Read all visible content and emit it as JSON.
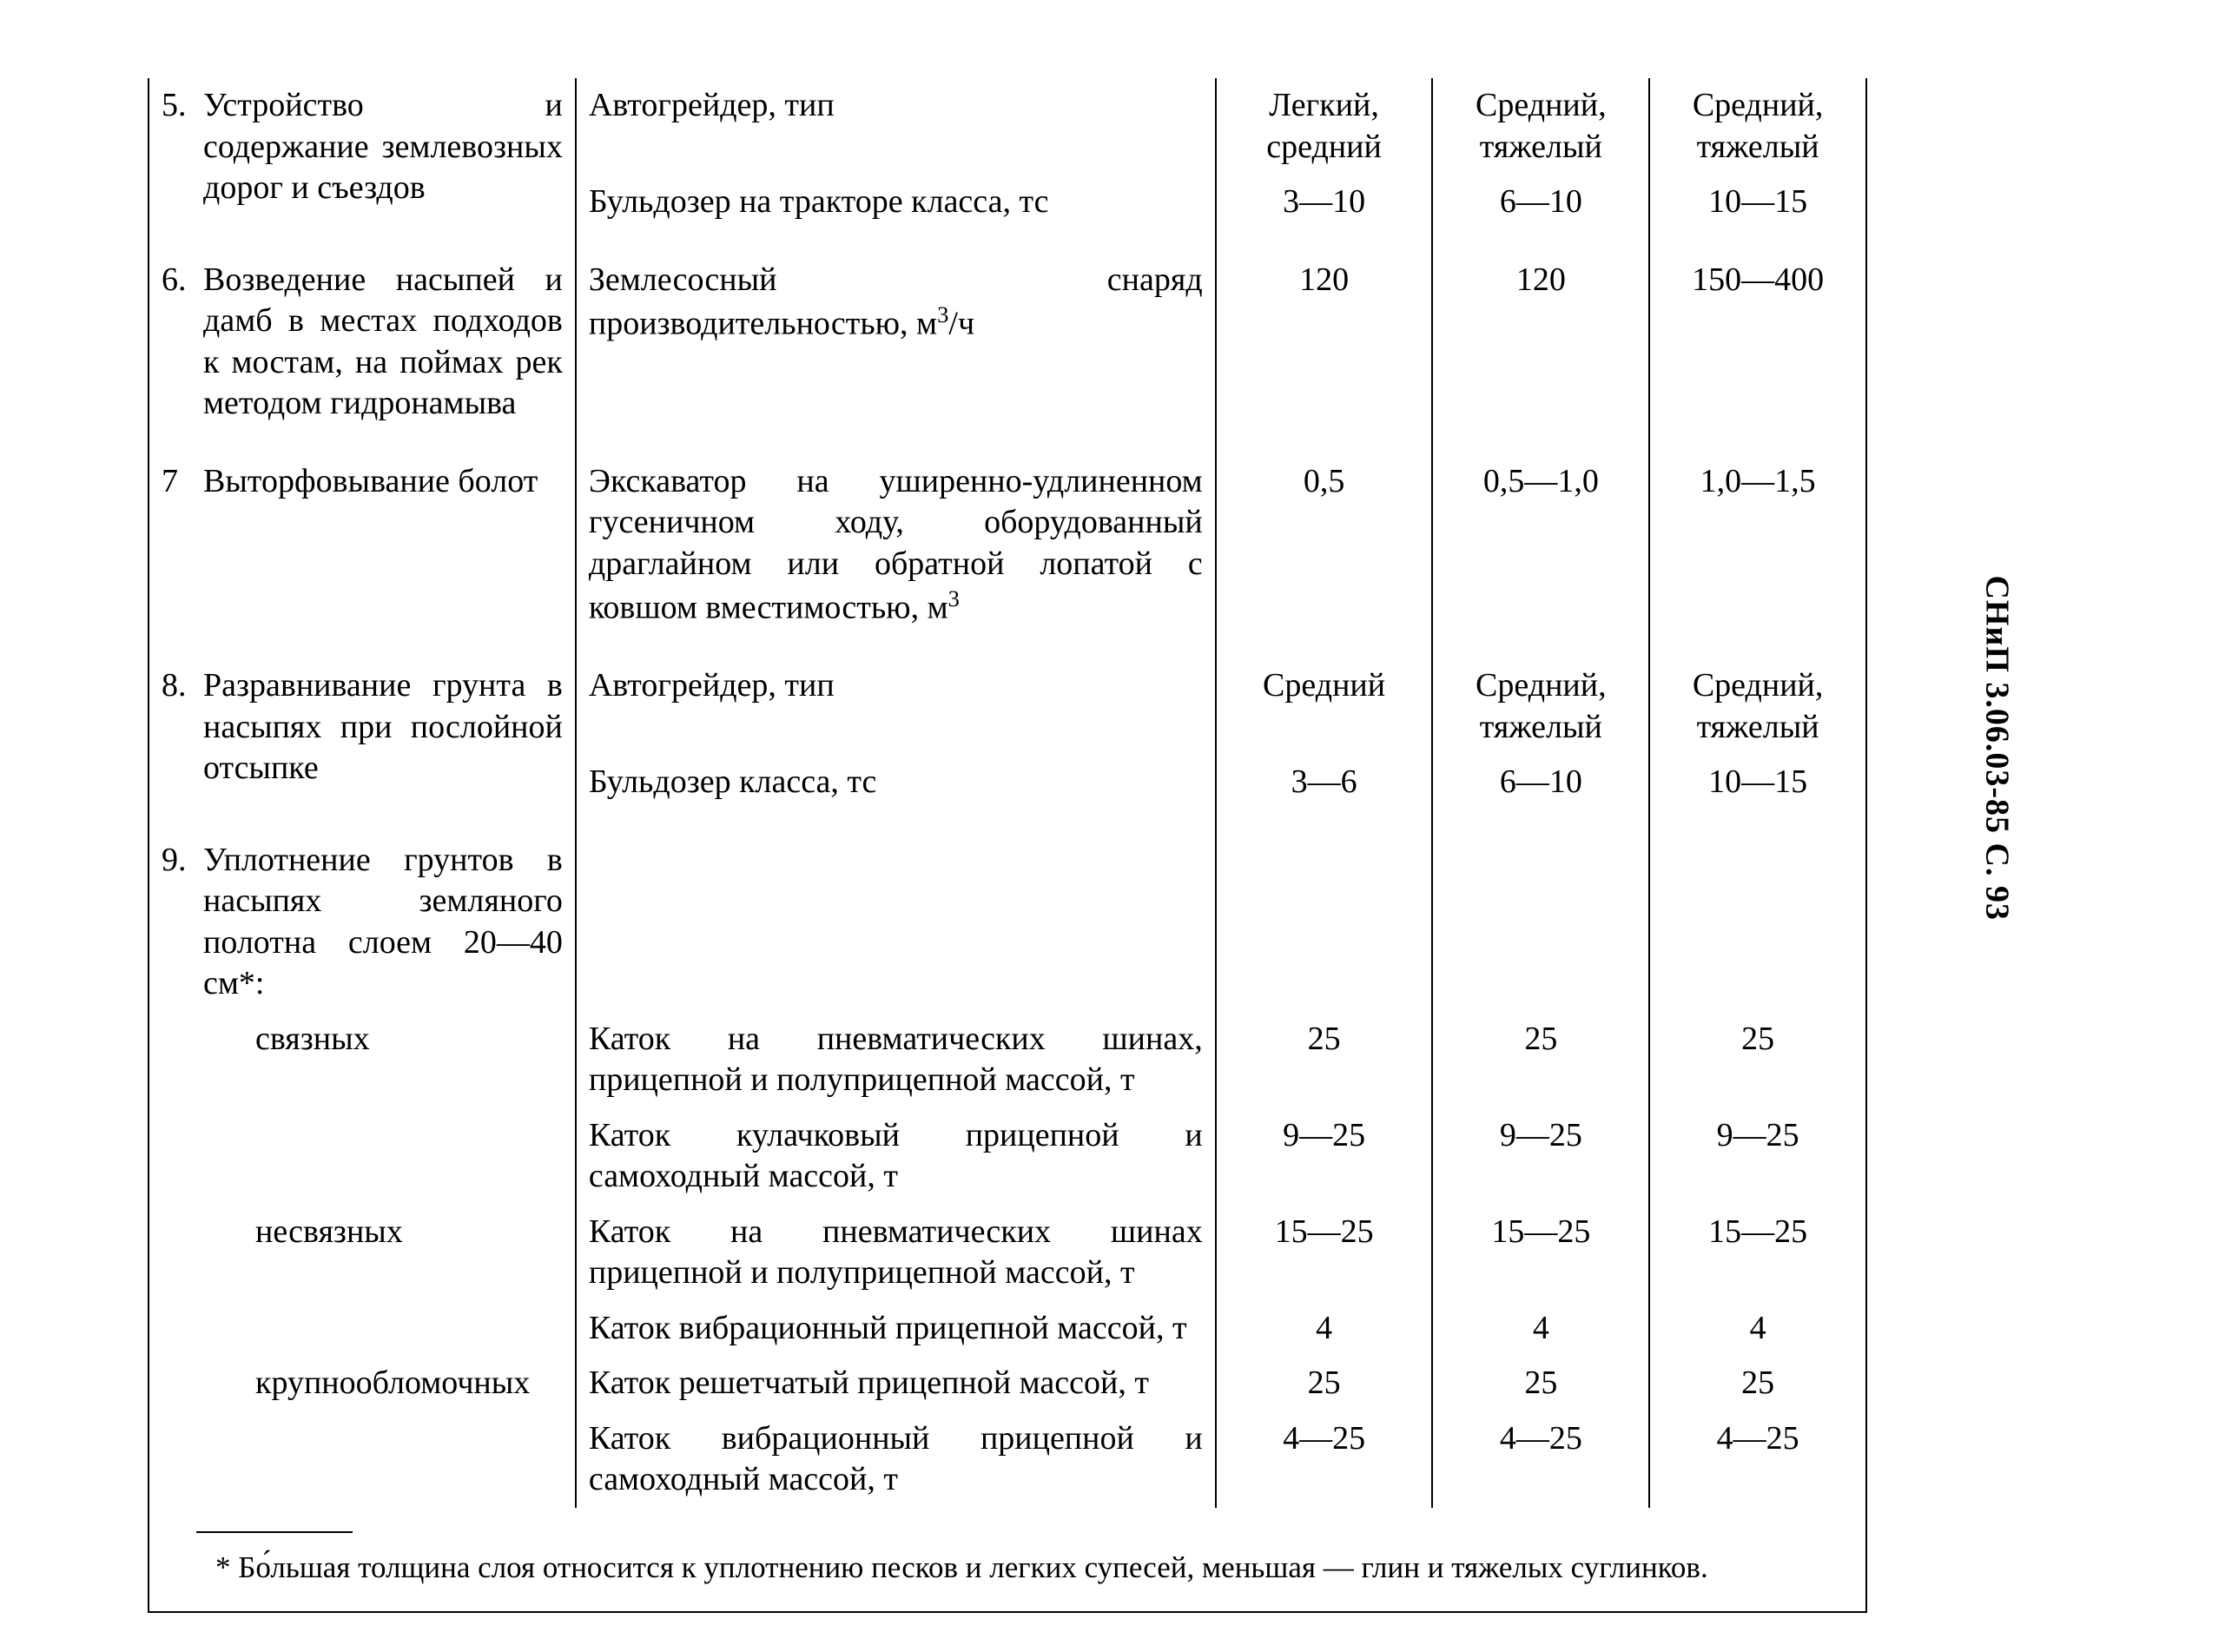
{
  "side_label": "СНиП 3.06.03-85 С. 93",
  "footnote": "* Бо́льшая толщина слоя относится к уплотнению песков и легких супесей, меньшая — глин и тяжелых суглинков.",
  "rows": {
    "r5": {
      "num": "5.",
      "title": "Устройство и содержание землевозных дорог и съездов",
      "m1": "Автогрейдер, тип",
      "m2": "Бульдозер на тракторе класса, тс",
      "v1": {
        "a": "Легкий, средний",
        "b": "Средний, тяжелый",
        "c": "Средний, тяжелый"
      },
      "v2": {
        "a": "3—10",
        "b": "6—10",
        "c": "10—15"
      }
    },
    "r6": {
      "num": "6.",
      "title": "Возведение насыпей и дамб в местах подходов к мостам, на поймах рек методом гидронамыва",
      "m": "Землесосный снаряд производительностью, м",
      "m_sup": "3",
      "m_tail": "/ч",
      "v": {
        "a": "120",
        "b": "120",
        "c": "150—400"
      }
    },
    "r7": {
      "num": "7",
      "title": "Выторфовывание болот",
      "m": "Экскаватор на уширенно-удлиненном гусеничном ходу, оборудованный драглайном или обратной лопатой с ковшом вместимостью, м",
      "m_sup": "3",
      "v": {
        "a": "0,5",
        "b": "0,5—1,0",
        "c": "1,0—1,5"
      }
    },
    "r8": {
      "num": "8.",
      "title": "Разравнивание грунта в насыпях при послойной отсыпке",
      "m1": "Автогрейдер, тип",
      "m2": "Бульдозер класса, тс",
      "v1": {
        "a": "Средний",
        "b": "Средний, тяжелый",
        "c": "Средний, тяжелый"
      },
      "v2": {
        "a": "3—6",
        "b": "6—10",
        "c": "10—15"
      }
    },
    "r9": {
      "num": "9.",
      "title": "Уплотнение грунтов в насыпях земляного полотна слоем 20—40 см*:",
      "sub1": "связных",
      "sub2": "несвязных",
      "sub3": "крупнообломочных",
      "m_a": "Каток на пневматических шинах, прицепной и полуприцепной массой, т",
      "m_b": "Каток кулачковый прицепной и самоходный массой, т",
      "m_c": "Каток на пневматических шинах прицепной и полуприцепной массой, т",
      "m_d": "Каток вибрационный прицепной массой, т",
      "m_e": "Каток решетчатый прицепной массой, т",
      "m_f": "Каток вибрационный прицепной и самоходный массой, т",
      "va": {
        "a": "25",
        "b": "25",
        "c": "25"
      },
      "vb": {
        "a": "9—25",
        "b": "9—25",
        "c": "9—25"
      },
      "vc": {
        "a": "15—25",
        "b": "15—25",
        "c": "15—25"
      },
      "vd": {
        "a": "4",
        "b": "4",
        "c": "4"
      },
      "ve": {
        "a": "25",
        "b": "25",
        "c": "25"
      },
      "vf": {
        "a": "4—25",
        "b": "4—25",
        "c": "4—25"
      }
    }
  }
}
